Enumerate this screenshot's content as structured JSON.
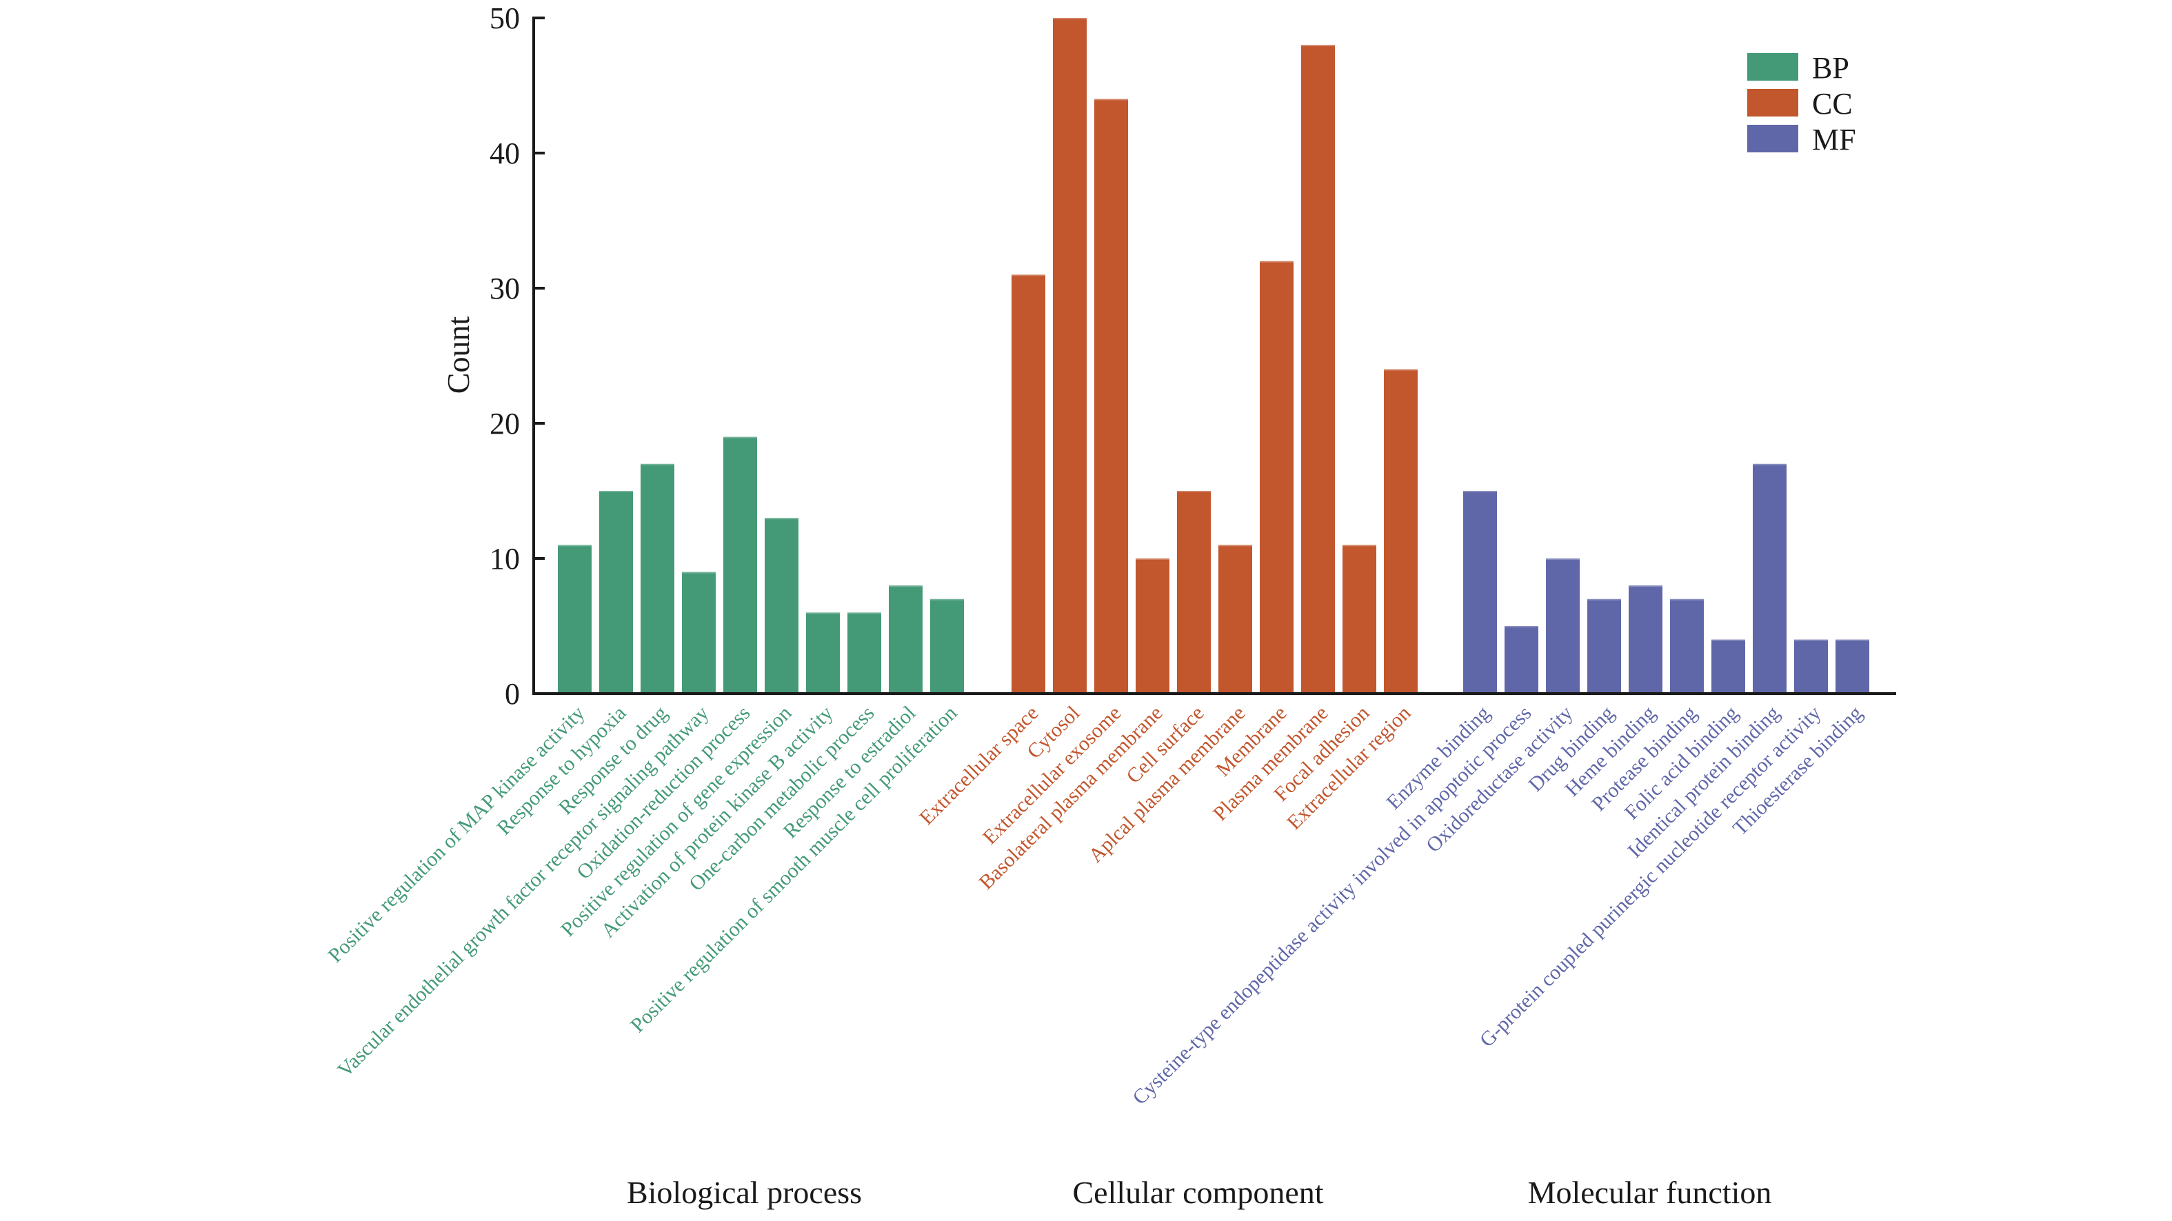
{
  "chart_data": {
    "type": "bar",
    "title": "",
    "xlabel": "",
    "ylabel": "Count",
    "ylim": [
      0,
      50
    ],
    "yticks": [
      0,
      10,
      20,
      30,
      40,
      50
    ],
    "grid": false,
    "legend_position": "top-right",
    "legend": [
      {
        "key": "BP",
        "label": "BP",
        "color": "#449a77"
      },
      {
        "key": "CC",
        "label": "CC",
        "color": "#c2562d"
      },
      {
        "key": "MF",
        "label": "MF",
        "color": "#6067a8"
      }
    ],
    "groups": [
      {
        "key": "BP",
        "name": "Biological process",
        "color": "#449a77",
        "categories": [
          "Positive regulation of MAP kinase activity",
          "Response to hypoxia",
          "Response to drug",
          "Vascular endothelial growth factor receptor signaling pathway",
          "Oxidation-reduction process",
          "Positive regulation of gene expression",
          "Activation of protein kinase B activity",
          "One-carbon metabolic process",
          "Response to estradiol",
          "Positive regulation of smooth muscle cell proliferation"
        ],
        "values": [
          11,
          15,
          17,
          9,
          19,
          13,
          6,
          6,
          8,
          7
        ]
      },
      {
        "key": "CC",
        "name": "Cellular component",
        "color": "#c2562d",
        "categories": [
          "Extracellular space",
          "Cytosol",
          "Extracellular exosome",
          "Basolateral plasma membrane",
          "Cell surface",
          "Aplcal plasma membrane",
          "Membrane",
          "Plasma membrane",
          "Focal adhesion",
          "Extracellular region"
        ],
        "values": [
          31,
          50,
          44,
          10,
          15,
          11,
          32,
          48,
          11,
          24
        ]
      },
      {
        "key": "MF",
        "name": "Molecular function",
        "color": "#6067a8",
        "categories": [
          "Enzyme binding",
          "Cysteine-type endopeptidase activity involved in apoptotic process",
          "Oxidoreductase activity",
          "Drug binding",
          "Heme binding",
          "Protease binding",
          "Folic acid binding",
          "Identical protein binding",
          "G-protein coupled purinergic nucleotide receptor activity",
          "Thioesterase binding"
        ],
        "values": [
          15,
          5,
          10,
          7,
          8,
          7,
          4,
          17,
          4,
          4
        ]
      }
    ]
  }
}
